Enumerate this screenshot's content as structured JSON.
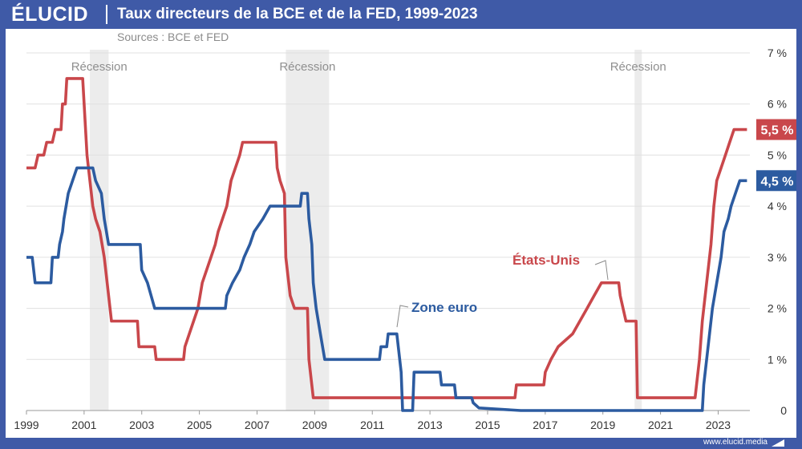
{
  "header": {
    "logo": "ÉLUCID",
    "title": "Taux directeurs de la BCE et de la FED, 1999-2023",
    "sources": "Sources : BCE et FED"
  },
  "footer": {
    "url": "www.elucid.media"
  },
  "chart_data": {
    "type": "line",
    "title": "Taux directeurs de la BCE et de la FED, 1999-2023",
    "xlim": [
      1999,
      2024.1
    ],
    "ylim": [
      0,
      7
    ],
    "x_ticks": [
      "1999",
      "2001",
      "2003",
      "2005",
      "2007",
      "2009",
      "2011",
      "2013",
      "2015",
      "2017",
      "2019",
      "2021",
      "2023"
    ],
    "x_tick_values": [
      1999,
      2001,
      2003,
      2005,
      2007,
      2009,
      2011,
      2013,
      2015,
      2017,
      2019,
      2021,
      2023
    ],
    "y_ticks": [
      "0",
      "1 %",
      "2 %",
      "3 %",
      "4 %",
      "5 %",
      "6 %",
      "7 %"
    ],
    "y_tick_values": [
      0,
      1,
      2,
      3,
      4,
      5,
      6,
      7
    ],
    "grid": "horizontal",
    "recessions": [
      {
        "label": "Récession",
        "start": 2001.2,
        "end": 2001.85
      },
      {
        "label": "Récession",
        "start": 2008.0,
        "end": 2009.5
      },
      {
        "label": "Récession",
        "start": 2020.1,
        "end": 2020.35
      }
    ],
    "series": [
      {
        "name": "États-Unis",
        "color": "#c9474b",
        "end_label": "5,5 %",
        "points": [
          [
            1999.0,
            4.75
          ],
          [
            1999.3,
            4.75
          ],
          [
            1999.4,
            5.0
          ],
          [
            1999.6,
            5.0
          ],
          [
            1999.7,
            5.25
          ],
          [
            1999.9,
            5.25
          ],
          [
            2000.0,
            5.5
          ],
          [
            2000.2,
            5.5
          ],
          [
            2000.25,
            6.0
          ],
          [
            2000.35,
            6.0
          ],
          [
            2000.4,
            6.5
          ],
          [
            2000.95,
            6.5
          ],
          [
            2001.05,
            5.5
          ],
          [
            2001.1,
            5.0
          ],
          [
            2001.2,
            4.5
          ],
          [
            2001.3,
            4.0
          ],
          [
            2001.4,
            3.75
          ],
          [
            2001.55,
            3.5
          ],
          [
            2001.7,
            3.0
          ],
          [
            2001.8,
            2.5
          ],
          [
            2001.9,
            2.0
          ],
          [
            2001.95,
            1.75
          ],
          [
            2002.85,
            1.75
          ],
          [
            2002.9,
            1.25
          ],
          [
            2003.45,
            1.25
          ],
          [
            2003.5,
            1.0
          ],
          [
            2004.45,
            1.0
          ],
          [
            2004.5,
            1.25
          ],
          [
            2004.65,
            1.5
          ],
          [
            2004.8,
            1.75
          ],
          [
            2004.95,
            2.0
          ],
          [
            2005.1,
            2.5
          ],
          [
            2005.25,
            2.75
          ],
          [
            2005.4,
            3.0
          ],
          [
            2005.55,
            3.25
          ],
          [
            2005.65,
            3.5
          ],
          [
            2005.8,
            3.75
          ],
          [
            2005.95,
            4.0
          ],
          [
            2006.1,
            4.5
          ],
          [
            2006.25,
            4.75
          ],
          [
            2006.4,
            5.0
          ],
          [
            2006.5,
            5.25
          ],
          [
            2007.65,
            5.25
          ],
          [
            2007.7,
            4.75
          ],
          [
            2007.8,
            4.5
          ],
          [
            2007.95,
            4.25
          ],
          [
            2008.0,
            3.0
          ],
          [
            2008.15,
            2.25
          ],
          [
            2008.3,
            2.0
          ],
          [
            2008.75,
            2.0
          ],
          [
            2008.8,
            1.0
          ],
          [
            2008.95,
            0.25
          ],
          [
            2015.95,
            0.25
          ],
          [
            2016.0,
            0.5
          ],
          [
            2016.95,
            0.5
          ],
          [
            2017.0,
            0.75
          ],
          [
            2017.2,
            1.0
          ],
          [
            2017.45,
            1.25
          ],
          [
            2017.95,
            1.5
          ],
          [
            2018.2,
            1.75
          ],
          [
            2018.45,
            2.0
          ],
          [
            2018.7,
            2.25
          ],
          [
            2018.95,
            2.5
          ],
          [
            2019.55,
            2.5
          ],
          [
            2019.6,
            2.25
          ],
          [
            2019.7,
            2.0
          ],
          [
            2019.8,
            1.75
          ],
          [
            2020.15,
            1.75
          ],
          [
            2020.2,
            0.25
          ],
          [
            2022.2,
            0.25
          ],
          [
            2022.25,
            0.5
          ],
          [
            2022.35,
            1.0
          ],
          [
            2022.45,
            1.75
          ],
          [
            2022.6,
            2.5
          ],
          [
            2022.75,
            3.25
          ],
          [
            2022.85,
            4.0
          ],
          [
            2022.95,
            4.5
          ],
          [
            2023.1,
            4.75
          ],
          [
            2023.25,
            5.0
          ],
          [
            2023.4,
            5.25
          ],
          [
            2023.55,
            5.5
          ],
          [
            2024.0,
            5.5
          ]
        ]
      },
      {
        "name": "Zone euro",
        "color": "#2c5ba0",
        "end_label": "4,5 %",
        "points": [
          [
            1999.0,
            3.0
          ],
          [
            1999.2,
            3.0
          ],
          [
            1999.3,
            2.5
          ],
          [
            1999.85,
            2.5
          ],
          [
            1999.9,
            3.0
          ],
          [
            2000.1,
            3.0
          ],
          [
            2000.15,
            3.25
          ],
          [
            2000.25,
            3.5
          ],
          [
            2000.3,
            3.75
          ],
          [
            2000.45,
            4.25
          ],
          [
            2000.6,
            4.5
          ],
          [
            2000.75,
            4.75
          ],
          [
            2001.3,
            4.75
          ],
          [
            2001.4,
            4.5
          ],
          [
            2001.6,
            4.25
          ],
          [
            2001.7,
            3.75
          ],
          [
            2001.85,
            3.25
          ],
          [
            2002.95,
            3.25
          ],
          [
            2003.0,
            2.75
          ],
          [
            2003.2,
            2.5
          ],
          [
            2003.45,
            2.0
          ],
          [
            2005.9,
            2.0
          ],
          [
            2005.95,
            2.25
          ],
          [
            2006.15,
            2.5
          ],
          [
            2006.4,
            2.75
          ],
          [
            2006.55,
            3.0
          ],
          [
            2006.75,
            3.25
          ],
          [
            2006.9,
            3.5
          ],
          [
            2007.2,
            3.75
          ],
          [
            2007.45,
            4.0
          ],
          [
            2008.5,
            4.0
          ],
          [
            2008.55,
            4.25
          ],
          [
            2008.75,
            4.25
          ],
          [
            2008.8,
            3.75
          ],
          [
            2008.9,
            3.25
          ],
          [
            2008.95,
            2.5
          ],
          [
            2009.05,
            2.0
          ],
          [
            2009.2,
            1.5
          ],
          [
            2009.35,
            1.0
          ],
          [
            2011.25,
            1.0
          ],
          [
            2011.3,
            1.25
          ],
          [
            2011.5,
            1.25
          ],
          [
            2011.55,
            1.5
          ],
          [
            2011.85,
            1.5
          ],
          [
            2011.9,
            1.25
          ],
          [
            2011.95,
            1.0
          ],
          [
            2012.0,
            0.75
          ],
          [
            2012.05,
            0.0
          ],
          [
            2012.4,
            0.0
          ],
          [
            2012.45,
            0.75
          ],
          [
            2013.35,
            0.75
          ],
          [
            2013.4,
            0.5
          ],
          [
            2013.85,
            0.5
          ],
          [
            2013.9,
            0.25
          ],
          [
            2014.45,
            0.25
          ],
          [
            2014.5,
            0.15
          ],
          [
            2014.7,
            0.05
          ],
          [
            2016.15,
            0.0
          ],
          [
            2022.45,
            0.0
          ],
          [
            2022.5,
            0.5
          ],
          [
            2022.65,
            1.25
          ],
          [
            2022.8,
            2.0
          ],
          [
            2022.95,
            2.5
          ],
          [
            2023.1,
            3.0
          ],
          [
            2023.2,
            3.5
          ],
          [
            2023.35,
            3.75
          ],
          [
            2023.45,
            4.0
          ],
          [
            2023.6,
            4.25
          ],
          [
            2023.75,
            4.5
          ],
          [
            2024.0,
            4.5
          ]
        ]
      }
    ],
    "annotations": [
      {
        "text": "États-Unis",
        "series": 0
      },
      {
        "text": "Zone euro",
        "series": 1
      }
    ]
  }
}
